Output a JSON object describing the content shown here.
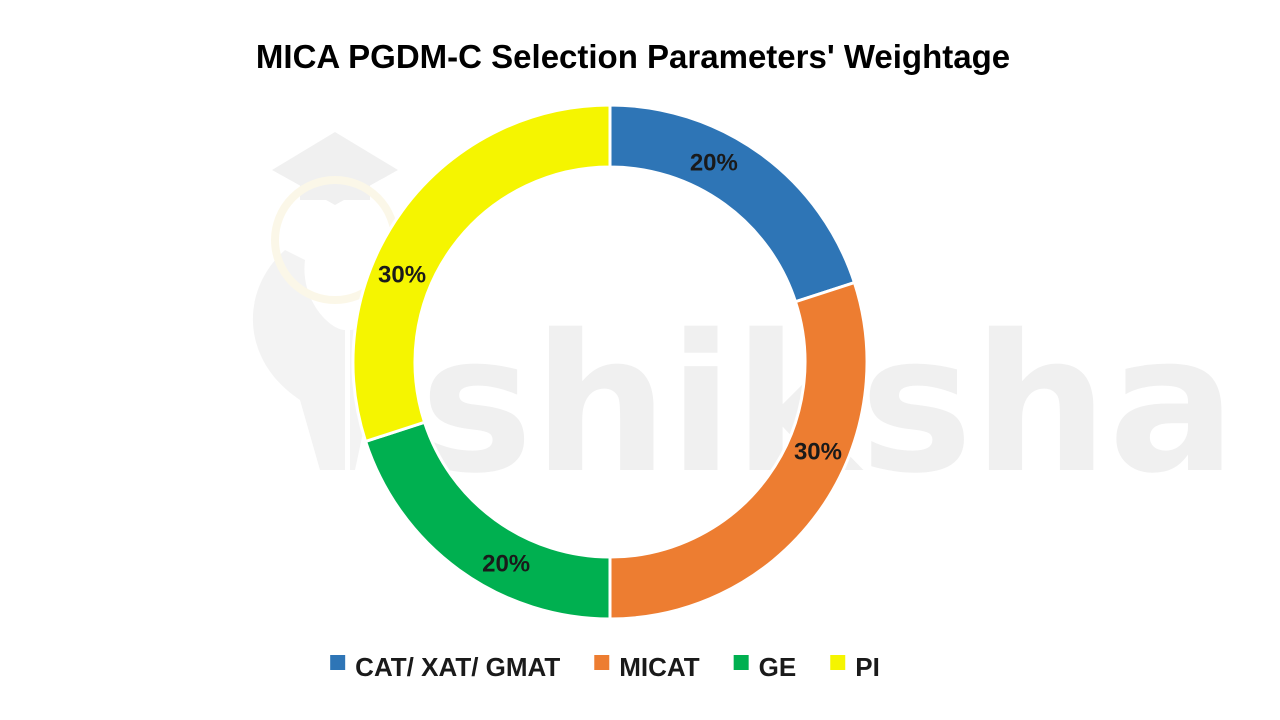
{
  "chart_data": {
    "type": "pie",
    "style": "donut",
    "title": "MICA PGDM-C Selection Parameters' Weightage",
    "categories": [
      "CAT/ XAT/ GMAT",
      "MICAT",
      "GE",
      "PI"
    ],
    "values": [
      20,
      30,
      20,
      30
    ],
    "value_labels": [
      "20%",
      "30%",
      "20%",
      "30%"
    ],
    "colors": [
      "#2E75B6",
      "#ED7D31",
      "#00B050",
      "#F5F500"
    ],
    "legend_position": "bottom",
    "start_angle": "12 o'clock, clockwise"
  },
  "watermark": {
    "text": "shiksha"
  }
}
